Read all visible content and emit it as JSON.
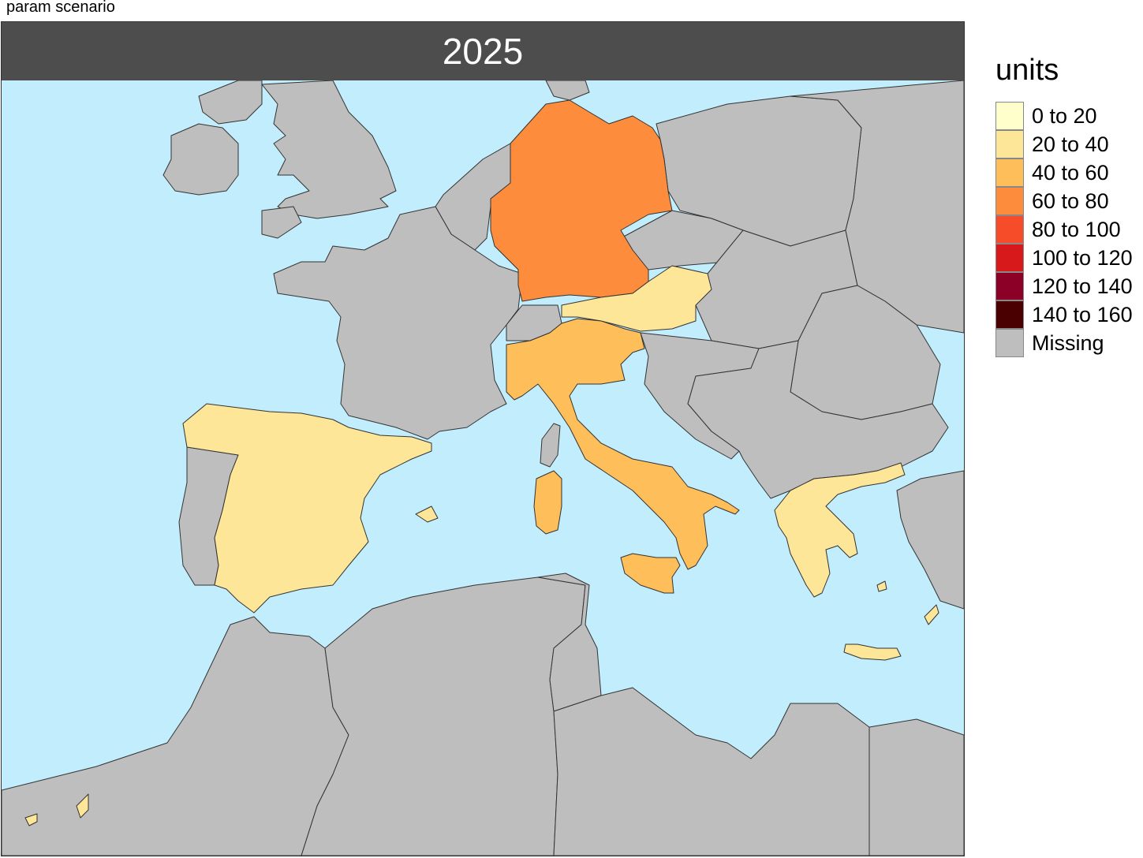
{
  "caption": "param scenario",
  "panel_title": "2025",
  "legend": {
    "title": "units",
    "items": [
      {
        "label": "0 to 20",
        "color": "#ffffcc"
      },
      {
        "label": "20 to 40",
        "color": "#fee699"
      },
      {
        "label": "40 to 60",
        "color": "#febe5a"
      },
      {
        "label": "60 to 80",
        "color": "#fd8d3c"
      },
      {
        "label": "80 to 100",
        "color": "#f64c2a"
      },
      {
        "label": "100 to 120",
        "color": "#d7191c"
      },
      {
        "label": "120 to 140",
        "color": "#8c0028"
      },
      {
        "label": "140 to 160",
        "color": "#4a0000"
      },
      {
        "label": "Missing",
        "color": "#bebebe"
      }
    ]
  },
  "colors": {
    "sea": "#c1edfc",
    "missing": "#bebebe",
    "border": "#333333"
  },
  "regions": {
    "germany": {
      "bin": "60 to 80"
    },
    "italy": {
      "bin": "40 to 60"
    },
    "spain": {
      "bin": "20 to 40"
    },
    "austria": {
      "bin": "20 to 40"
    },
    "greece": {
      "bin": "20 to 40"
    }
  }
}
